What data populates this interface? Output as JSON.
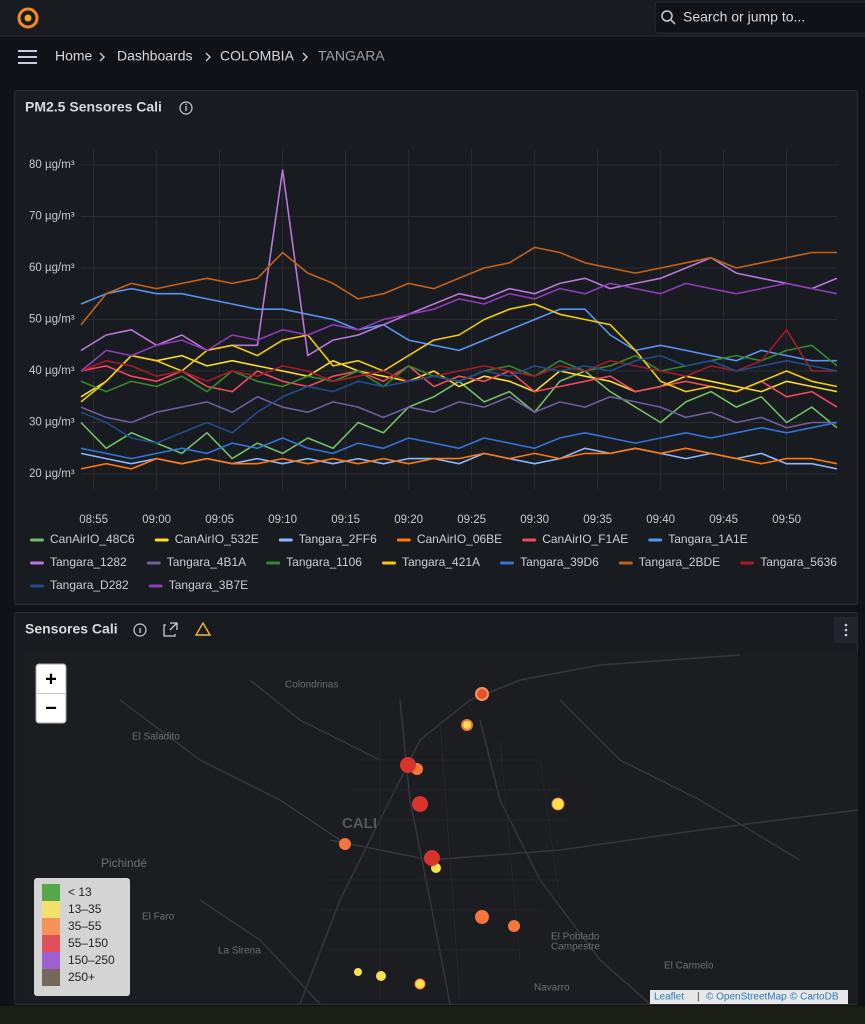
{
  "header": {
    "search": "Search or jump to...",
    "breadcrumbs": [
      "Home",
      "Dashboards",
      "COLOMBIA",
      "TANGARA"
    ]
  },
  "chart_data": {
    "type": "line",
    "title": "PM2.5 Sensores Cali",
    "x": [
      "08:54",
      "08:56",
      "08:58",
      "09:00",
      "09:02",
      "09:04",
      "09:06",
      "09:08",
      "09:10",
      "09:12",
      "09:14",
      "09:16",
      "09:18",
      "09:20",
      "09:22",
      "09:24",
      "09:26",
      "09:28",
      "09:30",
      "09:32",
      "09:34",
      "09:36",
      "09:38",
      "09:40",
      "09:42",
      "09:44",
      "09:46",
      "09:48",
      "09:50",
      "09:52",
      "09:54"
    ],
    "xlim": [
      "08:54",
      "09:54"
    ],
    "xticks": [
      "08:55",
      "09:00",
      "09:05",
      "09:10",
      "09:15",
      "09:20",
      "09:25",
      "09:30",
      "09:35",
      "09:40",
      "09:45",
      "09:50"
    ],
    "ylim": [
      17,
      83
    ],
    "yticks": [
      {
        "value": 20,
        "label": "20 µg/m³"
      },
      {
        "value": 30,
        "label": "30 µg/m³"
      },
      {
        "value": 40,
        "label": "40 µg/m³"
      },
      {
        "value": 50,
        "label": "50 µg/m³"
      },
      {
        "value": 60,
        "label": "60 µg/m³"
      },
      {
        "value": 70,
        "label": "70 µg/m³"
      },
      {
        "value": 80,
        "label": "80 µg/m³"
      }
    ],
    "grid": true,
    "series": [
      {
        "name": "CanAirIO_48C6",
        "color": "#73BF69",
        "values": [
          30,
          25,
          28,
          26,
          24,
          28,
          23,
          26,
          24,
          27,
          25,
          30,
          28,
          33,
          35,
          38,
          34,
          36,
          32,
          38,
          40,
          36,
          33,
          30,
          34,
          36,
          33,
          35,
          30,
          33,
          29
        ]
      },
      {
        "name": "CanAirIO_532E",
        "color": "#FADE2A",
        "values": [
          35,
          38,
          43,
          42,
          43,
          41,
          42,
          41,
          40,
          39,
          42,
          40,
          39,
          38,
          40,
          37,
          39,
          38,
          36,
          40,
          39,
          38,
          36,
          37,
          39,
          38,
          37,
          36,
          38,
          37,
          36
        ]
      },
      {
        "name": "Tangara_2FF6",
        "color": "#8AB8FF",
        "values": [
          24,
          23,
          22,
          23,
          22,
          23,
          22,
          23,
          22,
          23,
          22,
          23,
          22,
          23,
          23,
          22,
          24,
          23,
          22,
          23,
          25,
          24,
          25,
          24,
          23,
          24,
          23,
          24,
          22,
          22,
          21
        ]
      },
      {
        "name": "CanAirIO_06BE",
        "color": "#FF780A",
        "values": [
          21,
          22,
          21,
          23,
          22,
          23,
          22,
          22,
          23,
          22,
          23,
          22,
          23,
          22,
          23,
          23,
          24,
          23,
          24,
          23,
          24,
          24,
          25,
          24,
          25,
          24,
          23,
          22,
          23,
          23,
          22
        ]
      },
      {
        "name": "CanAirIO_F1AE",
        "color": "#F2495C",
        "values": [
          40,
          41,
          39,
          38,
          40,
          37,
          36,
          40,
          38,
          37,
          39,
          40,
          38,
          41,
          37,
          39,
          38,
          40,
          36,
          37,
          38,
          39,
          36,
          37,
          38,
          37,
          36,
          38,
          35,
          36,
          33
        ]
      },
      {
        "name": "Tangara_1A1E",
        "color": "#5794F2",
        "values": [
          53,
          55,
          56,
          55,
          55,
          54,
          53,
          52,
          52,
          51,
          50,
          48,
          49,
          46,
          45,
          44,
          46,
          48,
          50,
          52,
          52,
          47,
          44,
          45,
          44,
          43,
          42,
          44,
          43,
          42,
          42
        ]
      },
      {
        "name": "Tangara_1282",
        "color": "#B877D9",
        "values": [
          44,
          47,
          48,
          45,
          47,
          44,
          45,
          45,
          79,
          43,
          46,
          47,
          49,
          51,
          53,
          55,
          54,
          56,
          55,
          57,
          58,
          56,
          57,
          58,
          60,
          62,
          59,
          58,
          57,
          56,
          58
        ]
      },
      {
        "name": "Tangara_4B1A",
        "color": "#705DA0",
        "values": [
          33,
          31,
          30,
          32,
          33,
          34,
          32,
          35,
          33,
          32,
          34,
          33,
          31,
          33,
          32,
          34,
          33,
          35,
          32,
          34,
          33,
          35,
          34,
          33,
          31,
          32,
          30,
          31,
          29,
          30,
          30
        ]
      },
      {
        "name": "Tangara_1106",
        "color": "#37872D",
        "values": [
          38,
          36,
          38,
          37,
          39,
          36,
          40,
          38,
          37,
          39,
          38,
          40,
          37,
          41,
          39,
          38,
          40,
          41,
          39,
          42,
          40,
          41,
          43,
          40,
          41,
          42,
          43,
          42,
          44,
          45,
          41
        ]
      },
      {
        "name": "Tangara_421A",
        "color": "#F2CC0C",
        "values": [
          34,
          38,
          43,
          42,
          40,
          44,
          45,
          43,
          46,
          47,
          41,
          42,
          40,
          43,
          46,
          47,
          50,
          52,
          53,
          51,
          50,
          49,
          44,
          38,
          36,
          37,
          36,
          38,
          40,
          38,
          37
        ]
      },
      {
        "name": "Tangara_39D6",
        "color": "#3274D9",
        "values": [
          25,
          24,
          23,
          24,
          25,
          24,
          26,
          25,
          27,
          25,
          24,
          26,
          25,
          27,
          26,
          25,
          27,
          26,
          25,
          27,
          28,
          27,
          26,
          27,
          28,
          27,
          28,
          29,
          28,
          29,
          30
        ]
      },
      {
        "name": "Tangara_2BDE",
        "color": "#C4621A",
        "values": [
          49,
          55,
          57,
          56,
          57,
          58,
          57,
          58,
          63,
          59,
          57,
          54,
          55,
          57,
          56,
          58,
          60,
          61,
          64,
          63,
          61,
          60,
          59,
          60,
          61,
          62,
          60,
          61,
          62,
          63,
          63
        ]
      },
      {
        "name": "Tangara_5636",
        "color": "#A31C26",
        "values": [
          40,
          42,
          41,
          39,
          40,
          38,
          40,
          39,
          41,
          40,
          38,
          39,
          40,
          38,
          39,
          40,
          41,
          40,
          39,
          41,
          40,
          42,
          41,
          40,
          39,
          41,
          40,
          42,
          48,
          40,
          40
        ]
      },
      {
        "name": "Tangara_D282",
        "color": "#1F4E8C",
        "values": [
          32,
          30,
          27,
          26,
          28,
          30,
          28,
          32,
          35,
          37,
          36,
          38,
          37,
          38,
          39,
          38,
          40,
          39,
          41,
          40,
          41,
          40,
          42,
          43,
          41,
          42,
          40,
          41,
          42,
          41,
          40
        ]
      },
      {
        "name": "Tangara_3B7E",
        "color": "#8F3BB8",
        "values": [
          40,
          44,
          43,
          45,
          46,
          44,
          47,
          46,
          48,
          47,
          49,
          48,
          50,
          51,
          52,
          54,
          53,
          55,
          54,
          56,
          55,
          57,
          56,
          55,
          57,
          56,
          55,
          56,
          57,
          56,
          55
        ]
      }
    ]
  },
  "map": {
    "title": "Sensores Cali",
    "zoom": [
      "+",
      "−"
    ],
    "places": [
      "Colondrinas",
      "El Saladito",
      "CALI",
      "Pichindé",
      "El Faro",
      "La Sirena",
      "El Poblado",
      "Campestre",
      "El Carmelo",
      "Navarro"
    ],
    "legend": [
      "< 13",
      "13–35",
      "35–55",
      "55–150",
      "150–250",
      "250+"
    ],
    "attribution": [
      "Leaflet",
      "© OpenStreetMap",
      "© CartoDB"
    ]
  }
}
